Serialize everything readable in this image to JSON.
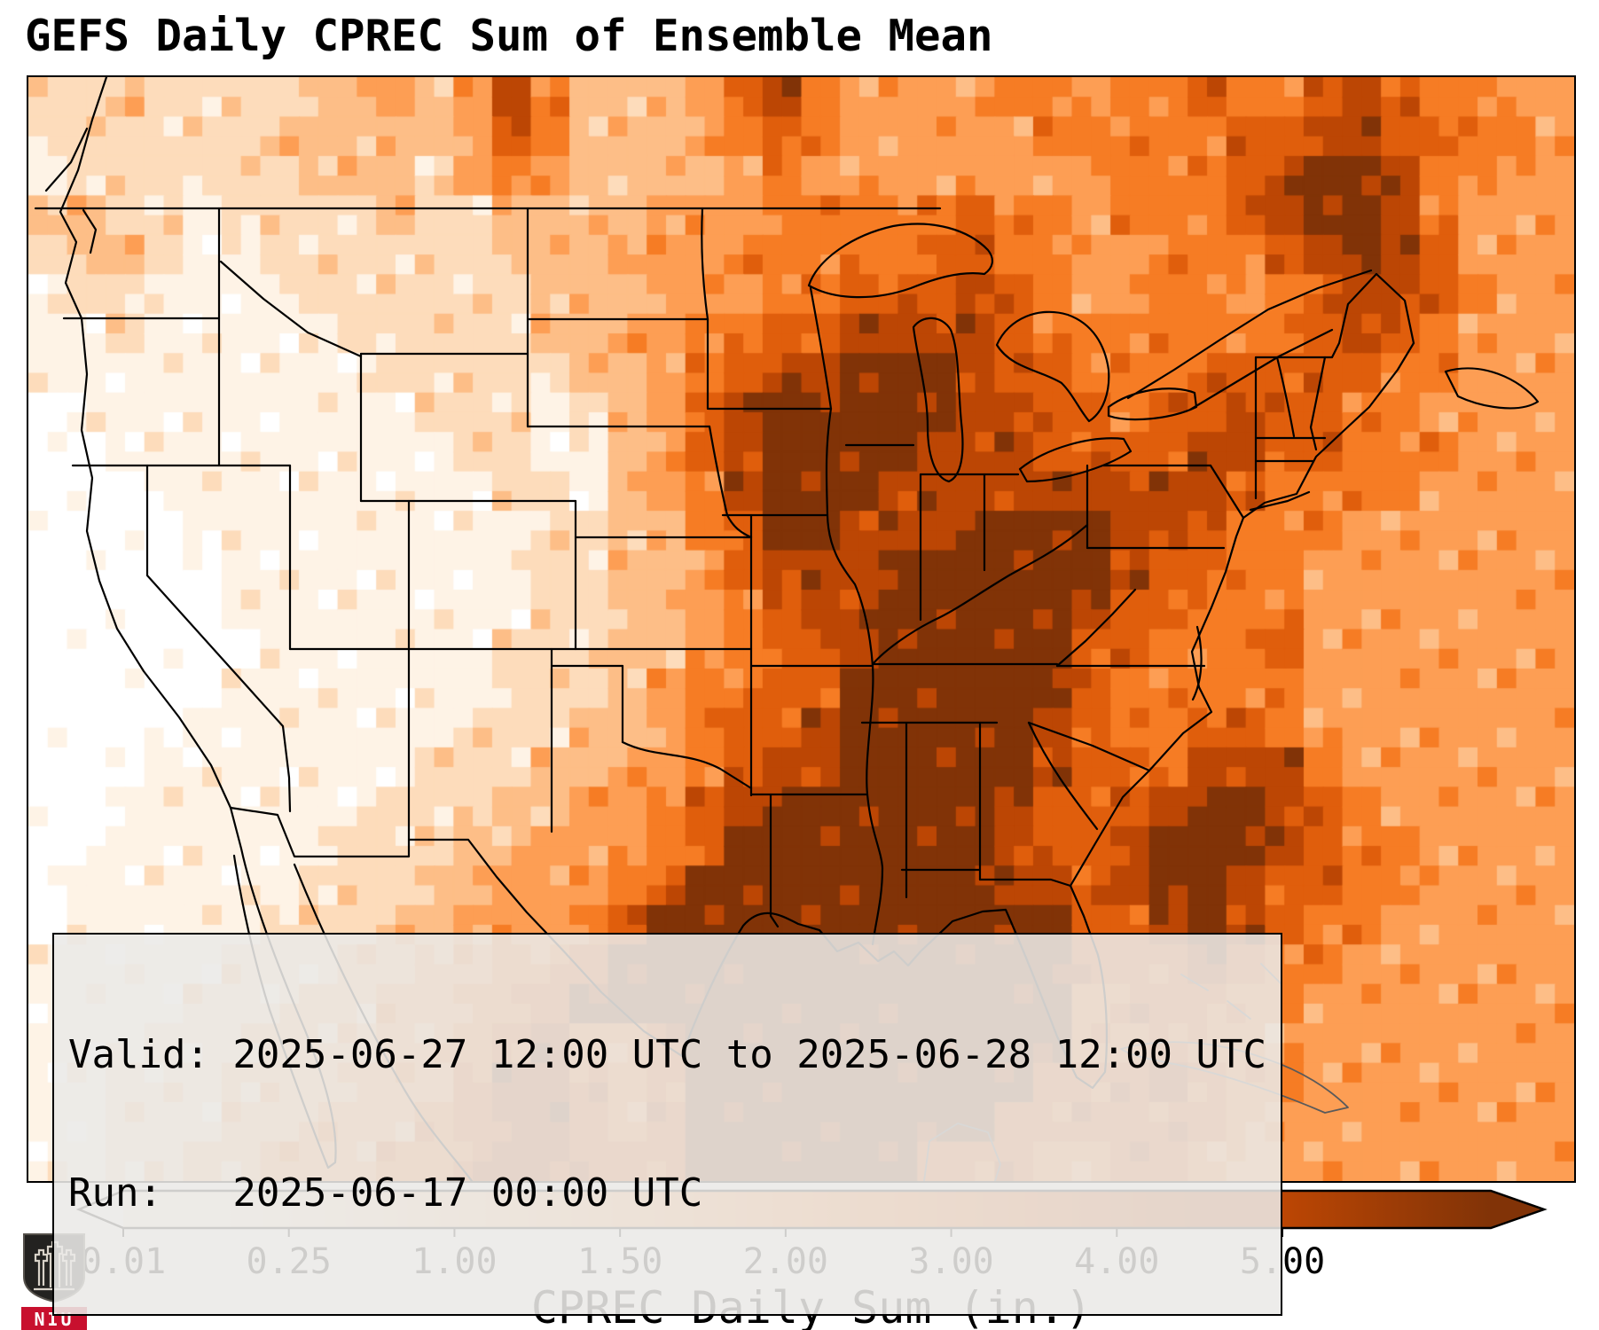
{
  "title": "GEFS Daily CPREC Sum of Ensemble Mean",
  "info_box": {
    "valid_line": "Valid: 2025-06-27 12:00 UTC to 2025-06-28 12:00 UTC",
    "run_line": "Run:   2025-06-17 00:00 UTC"
  },
  "colorbar": {
    "label": "CPREC Daily Sum (in.)",
    "ticks": [
      "0.01",
      "0.25",
      "1.00",
      "1.50",
      "2.00",
      "3.00",
      "4.00",
      "5.00"
    ],
    "palette": [
      "#ffffff",
      "#fef3e6",
      "#fddcbb",
      "#fdbe87",
      "#fd9e54",
      "#f67c24",
      "#e05e0c",
      "#bc4604",
      "#813307"
    ],
    "under_color": "#ffffff",
    "over_color": "#813307"
  },
  "logo": {
    "text": "NIU",
    "color": "#c8102e"
  },
  "chart_data": {
    "type": "heatmap",
    "title": "GEFS Daily CPREC Sum of Ensemble Mean",
    "legend_label": "CPREC Daily Sum (in.)",
    "units": "in.",
    "levels": [
      0.01,
      0.25,
      1.0,
      1.5,
      2.0,
      3.0,
      4.0,
      5.0
    ],
    "colors": [
      "#ffffff",
      "#fef3e6",
      "#fddcbb",
      "#fdbe87",
      "#fd9e54",
      "#f67c24",
      "#e05e0c",
      "#bc4604",
      "#813307"
    ],
    "legend_position": "bottom",
    "extent_hint": {
      "west_lon": -125,
      "east_lon": -60,
      "south_lat": 22.5,
      "north_lat": 52.5
    },
    "grid_cols": 40,
    "grid_rows": 28,
    "grid_note": "each digit 0-8 is a precipitation class index into colors; 0 = below 0.01 in, 8 = above 5.00 in",
    "grid": [
      "2232222334347533346754444554556556765544",
      "2222223333346533345654444455555667766554",
      "1222222333245433334544444444555678875544",
      "3322122223223333444555556554555678875444",
      "2332112222223334445555566554455567876444",
      "1221111222222333444556667654455456776544",
      "1121111122222334455667777655555556765444",
      "1111111112222233456778887665556666655444",
      "0111111111222123467888887766566766554444",
      "0011111111122113467888877766667766555444",
      "0001111111112213457888777777777655554444",
      "0000111111111223356887778888776555444444",
      "0000011111111223346777888888766554444444",
      "0000011111111223345677888887665554444444",
      "0000001111112223345667888886655564444444",
      "0000011111112223455668888886555554444444",
      "0000111111122233456678888876556654444444",
      "0001111111222334456778888876657775444444",
      "0011111112223344567888888766678876544444",
      "0011111122233444568888888766788876554444",
      "0111111222334445688888888776788766554444",
      "0111112223344456888888888886678765544444",
      "1111122233445568888888888886667655444444",
      "1111222334455688888888888885666554444444",
      "1112223334456755688888888885565544444444",
      "1122233344467765688888888866676554444444",
      "1122233444567765688888888666666544444444",
      "1122334445567766688888866655665444444444"
    ]
  }
}
